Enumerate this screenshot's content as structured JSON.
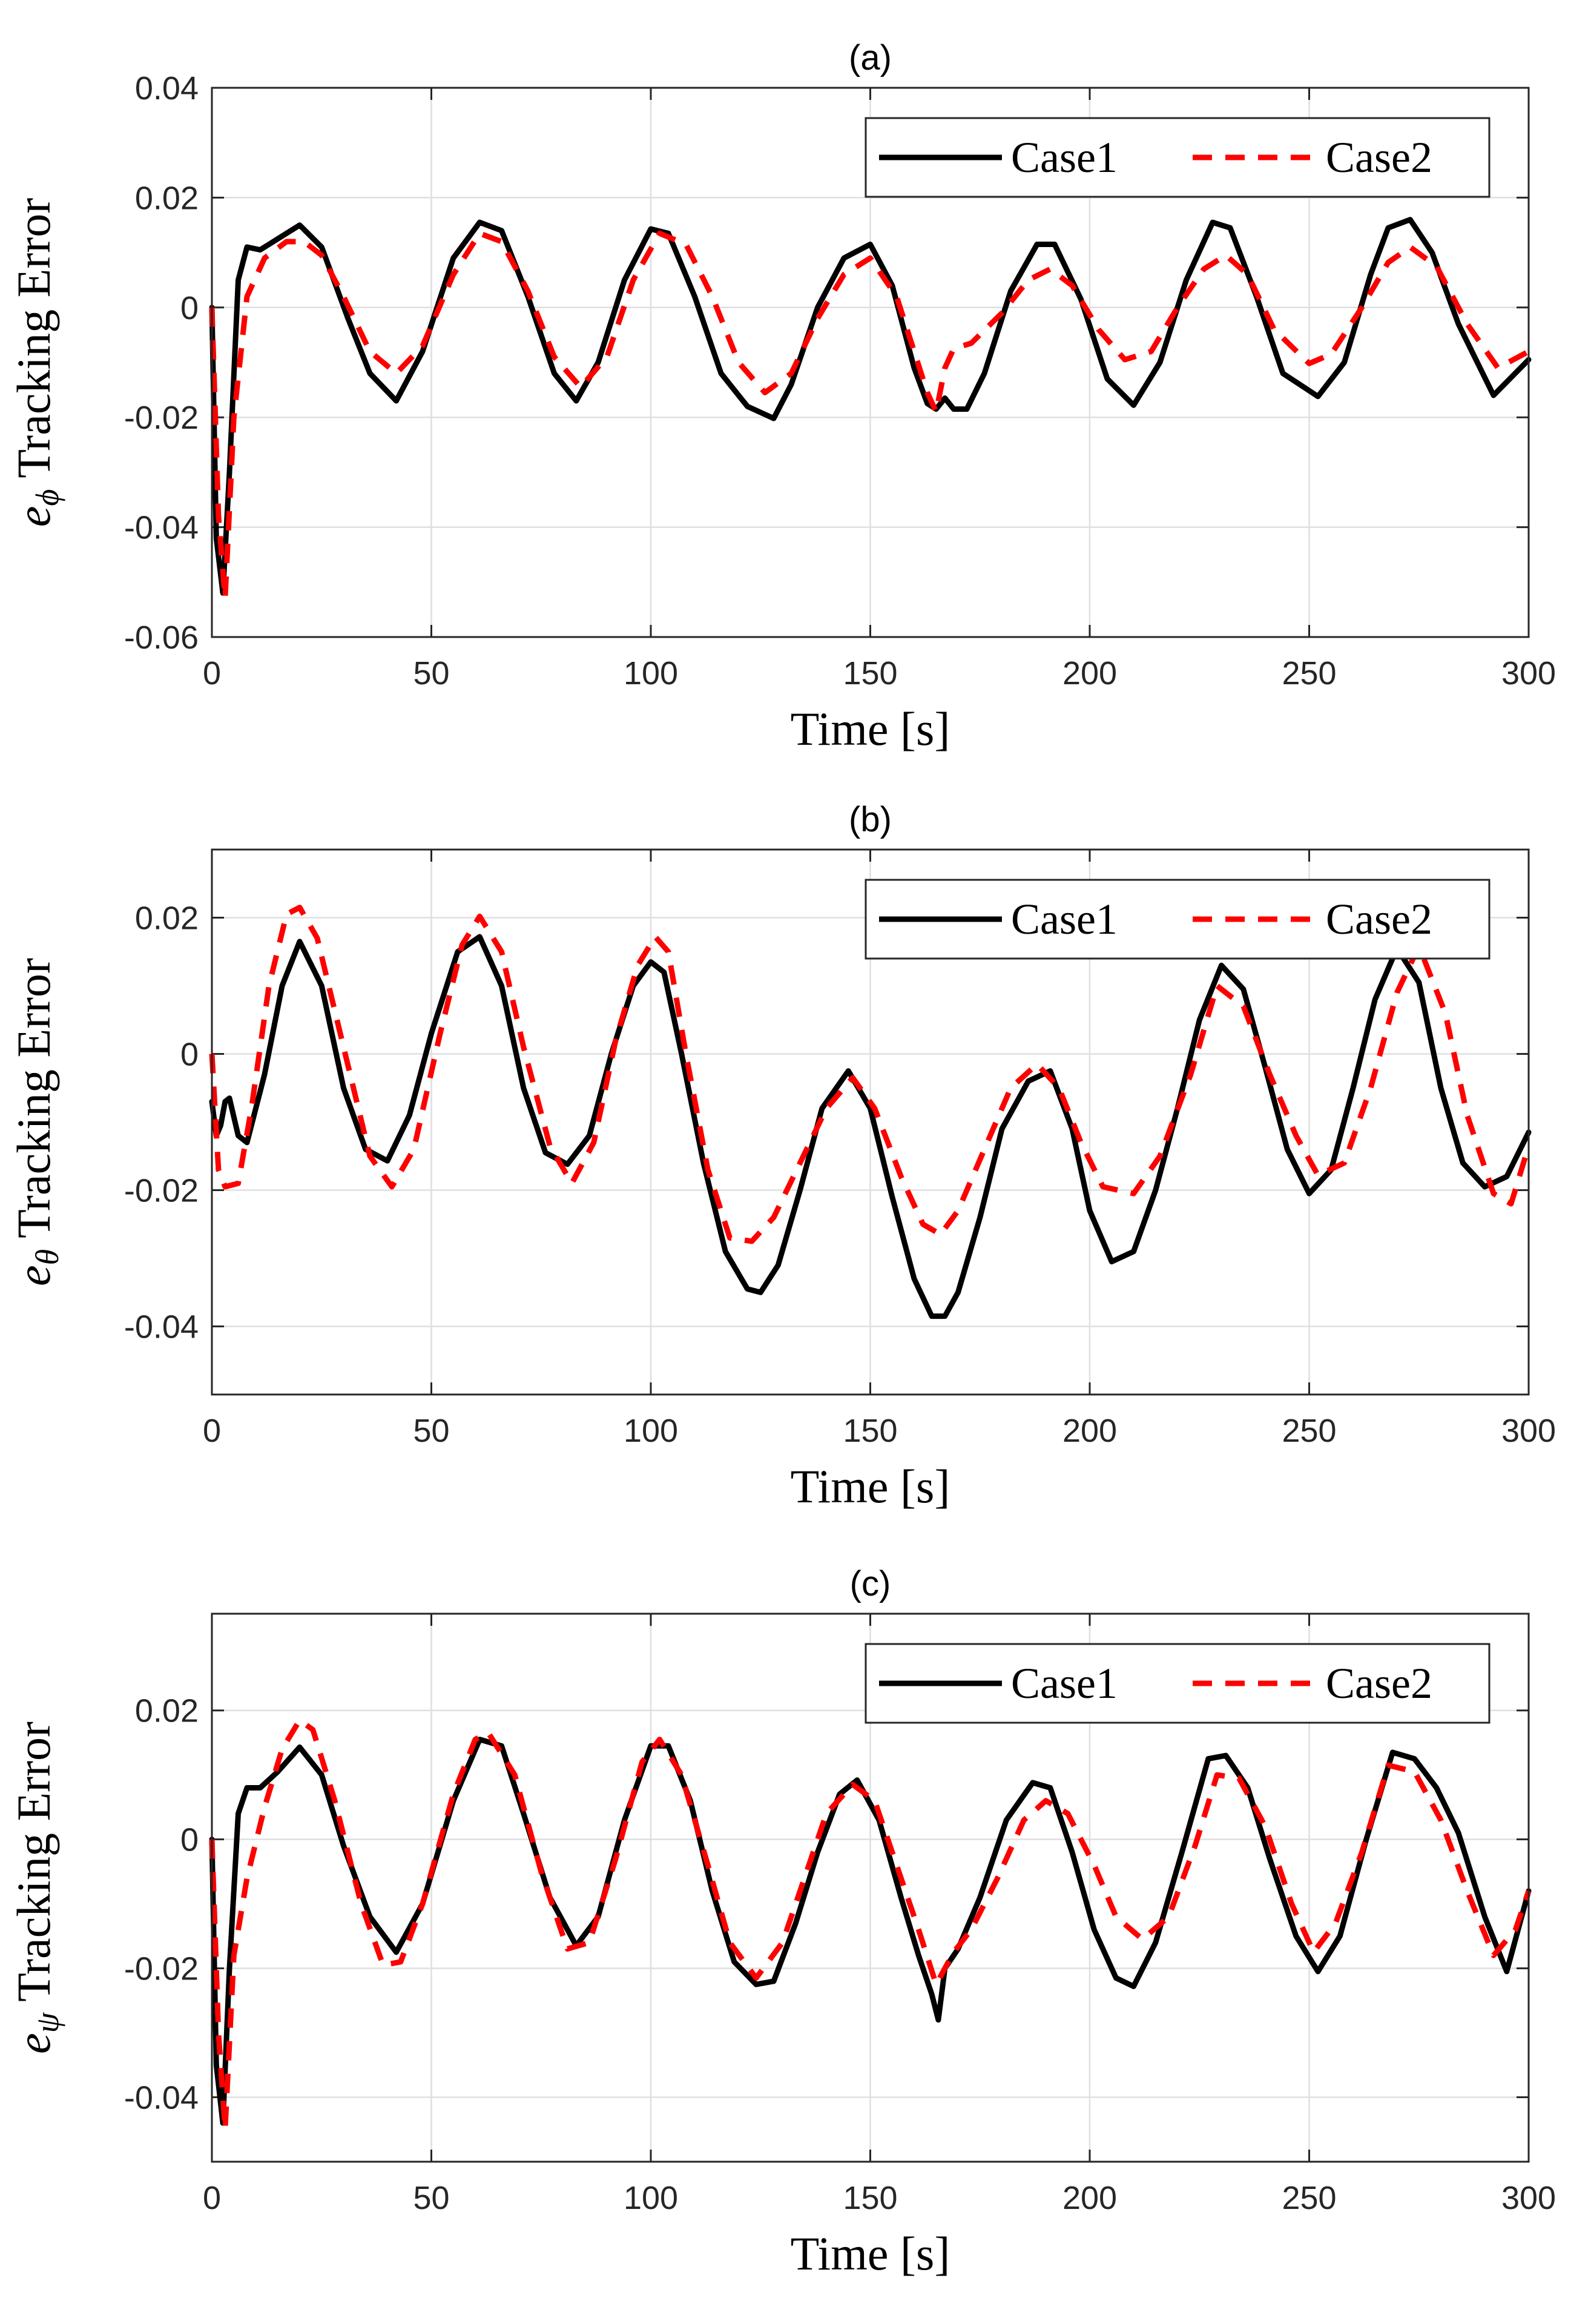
{
  "chart_data": [
    {
      "type": "line",
      "title": "(a)",
      "xlabel": "Time [s]",
      "ylabel_symbol": "e",
      "ylabel_subscript": "ϕ",
      "ylabel_text": "Tracking Error",
      "xlim": [
        0,
        300
      ],
      "ylim": [
        -0.06,
        0.04
      ],
      "xticks": [
        0,
        50,
        100,
        150,
        200,
        250,
        300
      ],
      "xtick_labels": [
        "0",
        "50",
        "100",
        "150",
        "200",
        "250",
        "300"
      ],
      "yticks": [
        -0.06,
        -0.04,
        -0.02,
        0,
        0.02,
        0.04
      ],
      "ytick_labels": [
        "-0.06",
        "-0.04",
        "-0.02",
        "0",
        "0.02",
        "0.04"
      ],
      "grid": true,
      "legend_position": "top-right",
      "series": [
        {
          "name": "Case1",
          "color": "#000000",
          "style": "solid",
          "x": [
            0,
            1,
            2.5,
            4,
            6,
            8,
            11,
            15,
            20,
            25,
            31,
            36,
            42,
            48,
            55,
            61,
            66,
            72,
            78,
            83,
            88,
            94,
            100,
            104,
            110,
            116,
            122,
            128,
            132,
            138,
            144,
            150,
            155,
            160,
            163,
            165,
            167,
            169,
            172,
            176,
            182,
            188,
            192,
            198,
            204,
            210,
            216,
            222,
            228,
            232,
            238,
            244,
            252,
            258,
            264,
            268,
            273,
            278,
            284,
            292,
            300
          ],
          "y": [
            0,
            -0.042,
            -0.052,
            -0.03,
            0.005,
            0.011,
            0.0105,
            0.0125,
            0.015,
            0.011,
            -0.002,
            -0.012,
            -0.017,
            -0.008,
            0.009,
            0.0155,
            0.014,
            0.002,
            -0.012,
            -0.017,
            -0.01,
            0.005,
            0.0143,
            0.0135,
            0.002,
            -0.012,
            -0.018,
            -0.0202,
            -0.014,
            0.0,
            0.009,
            0.0115,
            0.004,
            -0.011,
            -0.0175,
            -0.0185,
            -0.0165,
            -0.0185,
            -0.0185,
            -0.012,
            0.003,
            0.0115,
            0.0115,
            0.0015,
            -0.013,
            -0.0178,
            -0.01,
            0.005,
            0.0155,
            0.0145,
            0.002,
            -0.012,
            -0.0162,
            -0.01,
            0.006,
            0.0145,
            0.016,
            0.01,
            -0.003,
            -0.016,
            -0.0095
          ]
        },
        {
          "name": "Case2",
          "color": "#ff0000",
          "style": "dashed",
          "x": [
            0,
            1.5,
            3,
            5,
            8,
            12,
            17,
            21,
            25,
            30,
            36,
            42,
            48,
            55,
            61,
            66,
            72,
            78,
            84,
            90,
            96,
            102,
            108,
            114,
            120,
            126,
            132,
            138,
            144,
            150,
            156,
            160,
            163,
            165,
            167,
            169,
            173,
            180,
            186,
            191,
            196,
            202,
            208,
            214,
            220,
            226,
            231,
            236,
            242,
            250,
            255,
            262,
            268,
            273,
            279,
            286,
            293,
            300
          ],
          "y": [
            0,
            -0.038,
            -0.053,
            -0.02,
            0.002,
            0.009,
            0.012,
            0.012,
            0.0095,
            0.002,
            -0.008,
            -0.012,
            -0.007,
            0.006,
            0.0135,
            0.012,
            0.003,
            -0.009,
            -0.0145,
            -0.009,
            0.005,
            0.0135,
            0.0115,
            0.002,
            -0.01,
            -0.0155,
            -0.012,
            -0.002,
            0.006,
            0.009,
            0.002,
            -0.008,
            -0.0155,
            -0.019,
            -0.011,
            -0.0075,
            -0.0065,
            -0.001,
            0.005,
            0.007,
            0.004,
            -0.004,
            -0.0095,
            -0.008,
            0.0,
            0.007,
            0.0095,
            0.006,
            -0.004,
            -0.0102,
            -0.0085,
            0.0,
            0.0082,
            0.011,
            0.0075,
            -0.003,
            -0.011,
            -0.008
          ]
        }
      ]
    },
    {
      "type": "line",
      "title": "(b)",
      "xlabel": "Time [s]",
      "ylabel_symbol": "e",
      "ylabel_subscript": "θ",
      "ylabel_text": "Tracking Error",
      "xlim": [
        0,
        300
      ],
      "ylim": [
        -0.05,
        0.03
      ],
      "xticks": [
        0,
        50,
        100,
        150,
        200,
        250,
        300
      ],
      "xtick_labels": [
        "0",
        "50",
        "100",
        "150",
        "200",
        "250",
        "300"
      ],
      "yticks": [
        -0.04,
        -0.02,
        0,
        0.02
      ],
      "ytick_labels": [
        "-0.04",
        "-0.02",
        "0",
        "0.02"
      ],
      "grid": true,
      "legend_position": "top-right",
      "series": [
        {
          "name": "Case1",
          "color": "#000000",
          "style": "solid",
          "x": [
            0,
            1,
            2,
            3,
            4,
            6,
            8,
            12,
            16,
            20,
            25,
            30,
            35,
            40,
            45,
            50,
            56,
            61,
            66,
            71,
            76,
            81,
            86,
            91,
            96,
            100,
            103,
            107,
            112,
            117,
            122,
            125,
            129,
            134,
            139,
            145,
            150,
            155,
            160,
            164,
            167,
            170,
            175,
            180,
            186,
            191,
            196,
            200,
            205,
            210,
            215,
            220,
            225,
            230,
            235,
            240,
            245,
            250,
            255,
            260,
            265,
            270,
            275,
            280,
            285,
            290,
            295,
            300
          ],
          "y": [
            -0.007,
            -0.012,
            -0.0105,
            -0.007,
            -0.0065,
            -0.012,
            -0.013,
            -0.003,
            0.01,
            0.0165,
            0.01,
            -0.005,
            -0.014,
            -0.0157,
            -0.009,
            0.003,
            0.015,
            0.0172,
            0.01,
            -0.005,
            -0.0145,
            -0.0162,
            -0.012,
            0.0,
            0.01,
            0.0135,
            0.012,
            0.0,
            -0.016,
            -0.029,
            -0.0345,
            -0.035,
            -0.031,
            -0.02,
            -0.008,
            -0.0025,
            -0.008,
            -0.021,
            -0.033,
            -0.0385,
            -0.0385,
            -0.035,
            -0.024,
            -0.011,
            -0.004,
            -0.0025,
            -0.011,
            -0.023,
            -0.0305,
            -0.029,
            -0.02,
            -0.008,
            0.005,
            0.013,
            0.0095,
            -0.002,
            -0.014,
            -0.0205,
            -0.017,
            -0.005,
            0.008,
            0.0155,
            0.0105,
            -0.005,
            -0.016,
            -0.0195,
            -0.018,
            -0.0115
          ]
        },
        {
          "name": "Case2",
          "color": "#ff0000",
          "style": "dashed",
          "x": [
            0,
            1.5,
            3,
            6,
            9,
            13,
            17,
            20,
            24,
            30,
            36,
            41,
            46,
            52,
            57,
            61,
            66,
            71,
            77,
            82,
            87,
            92,
            97,
            101,
            104,
            108,
            113,
            118,
            123,
            128,
            134,
            140,
            146,
            151,
            157,
            162,
            166,
            170,
            176,
            182,
            188,
            193,
            198,
            203,
            210,
            216,
            223,
            229,
            235,
            241,
            247,
            252,
            258,
            264,
            270,
            275,
            281,
            286,
            292,
            296,
            300
          ],
          "y": [
            0,
            -0.017,
            -0.0195,
            -0.019,
            -0.008,
            0.01,
            0.0205,
            0.0215,
            0.017,
            0.001,
            -0.015,
            -0.0195,
            -0.014,
            0.003,
            0.016,
            0.0202,
            0.015,
            0.001,
            -0.0135,
            -0.019,
            -0.013,
            0.002,
            0.013,
            0.0172,
            0.015,
            0.0,
            -0.017,
            -0.027,
            -0.0275,
            -0.024,
            -0.016,
            -0.008,
            -0.0035,
            -0.008,
            -0.018,
            -0.025,
            -0.0265,
            -0.023,
            -0.014,
            -0.005,
            -0.0015,
            -0.005,
            -0.013,
            -0.0195,
            -0.0205,
            -0.015,
            -0.003,
            0.01,
            0.007,
            -0.003,
            -0.012,
            -0.0178,
            -0.016,
            -0.005,
            0.009,
            0.0158,
            0.006,
            -0.009,
            -0.0205,
            -0.022,
            -0.0135
          ]
        }
      ]
    },
    {
      "type": "line",
      "title": "(c)",
      "xlabel": "Time [s]",
      "ylabel_symbol": "e",
      "ylabel_subscript": "ψ",
      "ylabel_text": "Tracking Error",
      "xlim": [
        0,
        300
      ],
      "ylim": [
        -0.05,
        0.035
      ],
      "xticks": [
        0,
        50,
        100,
        150,
        200,
        250,
        300
      ],
      "xtick_labels": [
        "0",
        "50",
        "100",
        "150",
        "200",
        "250",
        "300"
      ],
      "yticks": [
        -0.04,
        -0.02,
        0,
        0.02
      ],
      "ytick_labels": [
        "-0.04",
        "-0.02",
        "0",
        "0.02"
      ],
      "grid": true,
      "legend_position": "top-right",
      "series": [
        {
          "name": "Case1",
          "color": "#000000",
          "style": "solid",
          "x": [
            0,
            1,
            2.5,
            4,
            6,
            8,
            11,
            15,
            20,
            25,
            30,
            36,
            42,
            48,
            55,
            61,
            66,
            71,
            77,
            83,
            88,
            94,
            100,
            104,
            109,
            114,
            119,
            124,
            128,
            133,
            138,
            143,
            147,
            152,
            157,
            161,
            164,
            165.5,
            167,
            170,
            175,
            181,
            187,
            191,
            196,
            201,
            206,
            210,
            215,
            221,
            227,
            231,
            236,
            241,
            247,
            252,
            257,
            263,
            269,
            274,
            279,
            284,
            290,
            295,
            300
          ],
          "y": [
            0,
            -0.035,
            -0.044,
            -0.02,
            0.004,
            0.008,
            0.008,
            0.0105,
            0.0143,
            0.01,
            -0.001,
            -0.012,
            -0.0175,
            -0.01,
            0.006,
            0.0155,
            0.0145,
            0.004,
            -0.009,
            -0.0165,
            -0.012,
            0.003,
            0.0145,
            0.0145,
            0.006,
            -0.008,
            -0.019,
            -0.0225,
            -0.022,
            -0.013,
            -0.002,
            0.007,
            0.0092,
            0.003,
            -0.009,
            -0.018,
            -0.024,
            -0.028,
            -0.02,
            -0.017,
            -0.009,
            0.003,
            0.0088,
            0.008,
            -0.002,
            -0.014,
            -0.0215,
            -0.0228,
            -0.016,
            -0.002,
            0.0125,
            0.013,
            0.008,
            -0.003,
            -0.015,
            -0.0205,
            -0.015,
            0.0,
            0.0135,
            0.0125,
            0.008,
            0.001,
            -0.012,
            -0.0205,
            -0.008
          ]
        },
        {
          "name": "Case2",
          "color": "#ff0000",
          "style": "dashed",
          "x": [
            0,
            1.5,
            3,
            5,
            8,
            12,
            16,
            20,
            23,
            28,
            34,
            39,
            43,
            48,
            55,
            60,
            63,
            69,
            75,
            81,
            86,
            92,
            98,
            102,
            107,
            113,
            118,
            124,
            130,
            135,
            140,
            146,
            151,
            156,
            161,
            165,
            169,
            173,
            179,
            185,
            190,
            195,
            201,
            206,
            212,
            218,
            224,
            229,
            234,
            240,
            246,
            251,
            256,
            262,
            268,
            274,
            280,
            286,
            292,
            297,
            300
          ],
          "y": [
            0,
            -0.03,
            -0.045,
            -0.018,
            -0.006,
            0.005,
            0.014,
            0.0185,
            0.017,
            0.006,
            -0.01,
            -0.0195,
            -0.019,
            -0.01,
            0.007,
            0.0155,
            0.0165,
            0.01,
            -0.005,
            -0.017,
            -0.016,
            -0.003,
            0.012,
            0.0155,
            0.01,
            -0.004,
            -0.016,
            -0.0215,
            -0.016,
            -0.006,
            0.004,
            0.0085,
            0.006,
            -0.004,
            -0.014,
            -0.0225,
            -0.0175,
            -0.014,
            -0.006,
            0.003,
            0.006,
            0.004,
            -0.004,
            -0.012,
            -0.0155,
            -0.012,
            -0.001,
            0.01,
            0.0095,
            0.002,
            -0.01,
            -0.0175,
            -0.013,
            -0.002,
            0.0115,
            0.0105,
            0.003,
            -0.008,
            -0.018,
            -0.014,
            -0.008
          ]
        }
      ]
    }
  ]
}
